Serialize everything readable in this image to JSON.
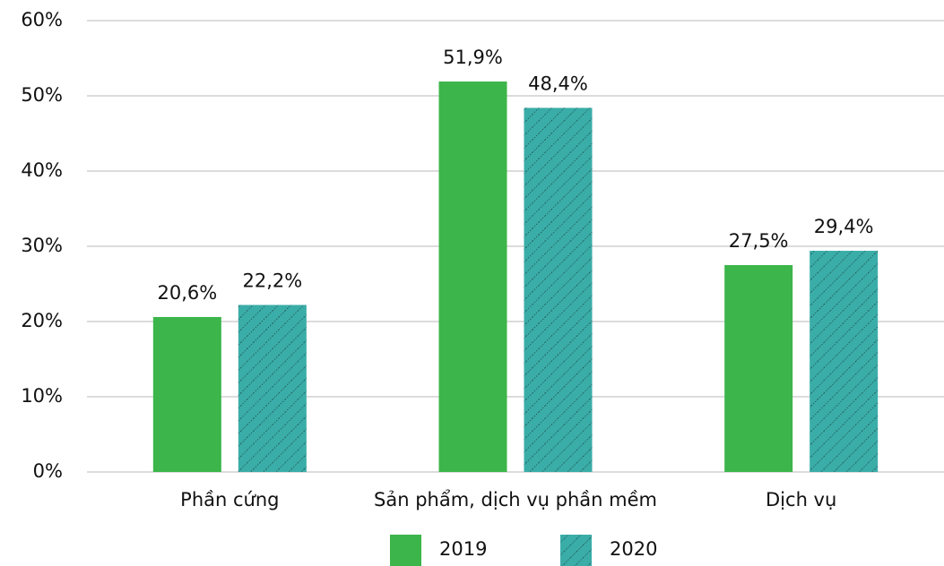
{
  "chart_data": {
    "type": "bar",
    "categories": [
      "Phần cứng",
      "Sản phẩm, dịch vụ phần mềm",
      "Dịch vụ"
    ],
    "series": [
      {
        "name": "2019",
        "color": "#3cb54a",
        "values": [
          20.6,
          51.9,
          27.5
        ],
        "value_labels": [
          "20,6%",
          "51,9%",
          "27,5%"
        ]
      },
      {
        "name": "2020",
        "color": "#3aada8",
        "values": [
          22.2,
          48.4,
          29.4
        ],
        "value_labels": [
          "22,2%",
          "48,4%",
          "29,4%"
        ]
      }
    ],
    "ylim": [
      0,
      60
    ],
    "yticks": [
      {
        "value": 0,
        "label": "0%"
      },
      {
        "value": 10,
        "label": "10%"
      },
      {
        "value": 20,
        "label": "20%"
      },
      {
        "value": 30,
        "label": "30%"
      },
      {
        "value": 40,
        "label": "40%"
      },
      {
        "value": 50,
        "label": "50%"
      },
      {
        "value": 60,
        "label": "60%"
      }
    ],
    "grid": true,
    "legend": "bottom"
  }
}
